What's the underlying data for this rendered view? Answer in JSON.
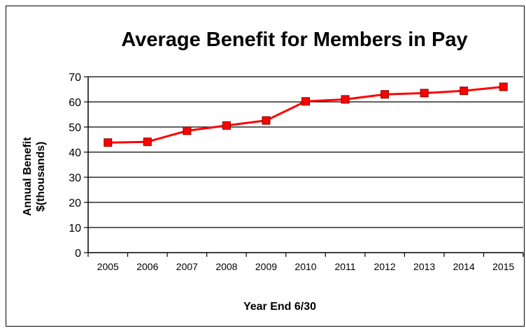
{
  "chart_data": {
    "type": "line",
    "title": "Average Benefit for Members in Pay",
    "xlabel": "Year End 6/30",
    "ylabel_lines": [
      "Annual Benefit",
      "$(thousands)"
    ],
    "categories": [
      "2005",
      "2006",
      "2007",
      "2008",
      "2009",
      "2010",
      "2011",
      "2012",
      "2013",
      "2014",
      "2015"
    ],
    "series": [
      {
        "values": [
          43.8,
          44.1,
          48.5,
          50.6,
          52.6,
          60.2,
          61.0,
          63.0,
          63.5,
          64.4,
          66.0
        ]
      }
    ],
    "ylim": [
      0,
      70
    ],
    "yticks": [
      "0",
      "10",
      "20",
      "30",
      "40",
      "50",
      "60",
      "70"
    ],
    "grid": true,
    "legend": "none",
    "colors": {
      "line": "#ff0000",
      "marker_fill": "#ff0000",
      "marker_edge": "#800000",
      "grid": "#000000"
    }
  }
}
